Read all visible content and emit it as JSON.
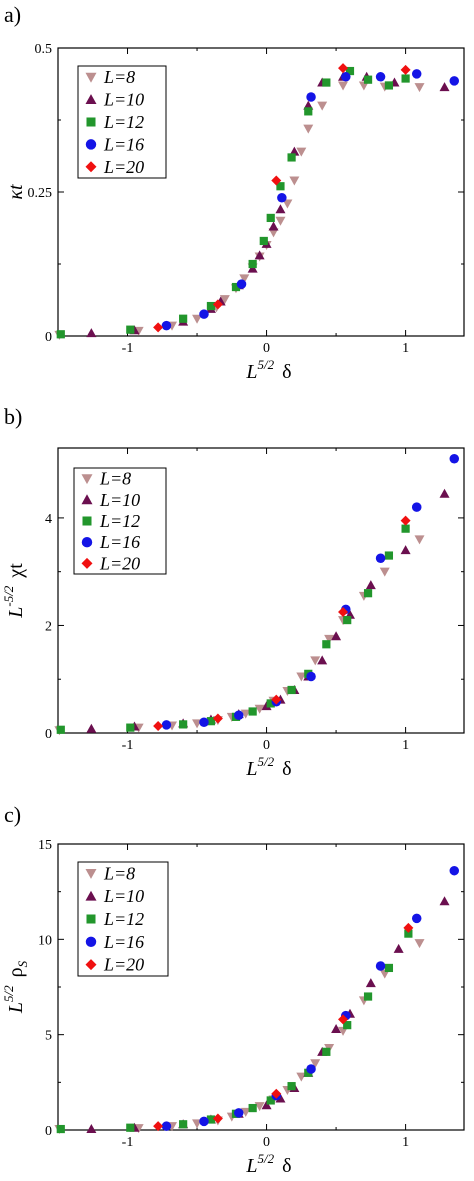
{
  "colors": {
    "L8": "#bc8f8f",
    "L10": "#6b0f4f",
    "L12": "#22962c",
    "L16": "#1414e6",
    "L20": "#f01010"
  },
  "chart_data": [
    {
      "type": "scatter",
      "panel_label": "a)",
      "xlabel": {
        "base": "L",
        "sup": "5/2",
        "tail": "δ"
      },
      "ylabel": {
        "main": "κt"
      },
      "xlim": [
        -1.5,
        1.42
      ],
      "ylim": [
        0,
        0.5
      ],
      "xticks": [
        -1,
        0,
        1
      ],
      "xtick_labels": [
        "-1",
        "0",
        "1"
      ],
      "yticks": [
        0,
        0.25,
        0.5
      ],
      "ytick_labels": [
        "0",
        "0.25",
        "0.5"
      ],
      "grid": false,
      "legend_position": "top-left",
      "series": [
        {
          "name": "L=8",
          "marker": "triangle-down",
          "color_key": "L8",
          "x": [
            -1.49,
            -0.92,
            -0.68,
            -0.5,
            -0.36,
            -0.3,
            -0.22,
            -0.16,
            -0.1,
            -0.05,
            0.0,
            0.05,
            0.1,
            0.15,
            0.2,
            0.25,
            0.3,
            0.4,
            0.55,
            0.7,
            0.85,
            1.1
          ],
          "y": [
            0.002,
            0.009,
            0.018,
            0.03,
            0.05,
            0.064,
            0.083,
            0.1,
            0.119,
            0.138,
            0.158,
            0.18,
            0.2,
            0.23,
            0.27,
            0.32,
            0.36,
            0.4,
            0.435,
            0.435,
            0.433,
            0.432
          ]
        },
        {
          "name": "L=10",
          "marker": "triangle-up",
          "color_key": "L10",
          "x": [
            -1.26,
            -0.95,
            -0.6,
            -0.4,
            -0.33,
            -0.2,
            -0.1,
            -0.05,
            0.0,
            0.05,
            0.1,
            0.2,
            0.3,
            0.4,
            0.55,
            0.72,
            0.92,
            1.28
          ],
          "y": [
            0.005,
            0.01,
            0.025,
            0.047,
            0.06,
            0.088,
            0.117,
            0.14,
            0.16,
            0.19,
            0.22,
            0.32,
            0.4,
            0.44,
            0.45,
            0.45,
            0.44,
            0.432
          ]
        },
        {
          "name": "L=12",
          "marker": "square",
          "color_key": "L12",
          "x": [
            -1.48,
            -0.98,
            -0.6,
            -0.4,
            -0.22,
            -0.1,
            -0.02,
            0.03,
            0.1,
            0.18,
            0.3,
            0.43,
            0.6,
            0.73,
            0.88,
            1.0
          ],
          "y": [
            0.003,
            0.011,
            0.03,
            0.052,
            0.085,
            0.125,
            0.165,
            0.205,
            0.26,
            0.31,
            0.39,
            0.44,
            0.46,
            0.445,
            0.435,
            0.447
          ]
        },
        {
          "name": "L=16",
          "marker": "circle",
          "color_key": "L16",
          "x": [
            -0.72,
            -0.45,
            -0.18,
            0.11,
            0.32,
            0.57,
            0.82,
            1.08,
            1.35
          ],
          "y": [
            0.018,
            0.038,
            0.09,
            0.24,
            0.415,
            0.45,
            0.45,
            0.455,
            0.443
          ]
        },
        {
          "name": "L=20",
          "marker": "diamond",
          "color_key": "L20",
          "x": [
            -0.78,
            -0.35,
            0.07,
            0.55,
            1.0
          ],
          "y": [
            0.015,
            0.055,
            0.27,
            0.465,
            0.462
          ]
        }
      ]
    },
    {
      "type": "scatter",
      "panel_label": "b)",
      "xlabel": {
        "base": "L",
        "sup": "5/2",
        "tail": "δ"
      },
      "ylabel": {
        "base": "L",
        "sup": "-5/2",
        "tail": "χt"
      },
      "xlim": [
        -1.5,
        1.42
      ],
      "ylim": [
        0,
        5.3
      ],
      "xticks": [
        -1,
        0,
        1
      ],
      "xtick_labels": [
        "-1",
        "0",
        "1"
      ],
      "yticks": [
        0,
        2,
        4
      ],
      "ytick_labels": [
        "0",
        "2",
        "4"
      ],
      "grid": false,
      "legend_position": "top-left",
      "series": [
        {
          "name": "L=8",
          "marker": "triangle-down",
          "color_key": "L8",
          "x": [
            -1.49,
            -0.92,
            -0.68,
            -0.5,
            -0.35,
            -0.25,
            -0.15,
            -0.05,
            0.05,
            0.15,
            0.25,
            0.35,
            0.45,
            0.55,
            0.7,
            0.85,
            1.1
          ],
          "y": [
            0.05,
            0.1,
            0.14,
            0.18,
            0.24,
            0.3,
            0.36,
            0.45,
            0.6,
            0.78,
            1.05,
            1.35,
            1.75,
            2.1,
            2.55,
            3.0,
            3.6
          ]
        },
        {
          "name": "L=10",
          "marker": "triangle-up",
          "color_key": "L10",
          "x": [
            -1.26,
            -0.95,
            -0.6,
            -0.4,
            -0.2,
            0.0,
            0.1,
            0.2,
            0.3,
            0.4,
            0.5,
            0.6,
            0.75,
            1.0,
            1.28
          ],
          "y": [
            0.08,
            0.12,
            0.18,
            0.25,
            0.35,
            0.5,
            0.62,
            0.8,
            1.05,
            1.35,
            1.8,
            2.2,
            2.75,
            3.4,
            4.45
          ]
        },
        {
          "name": "L=12",
          "marker": "square",
          "color_key": "L12",
          "x": [
            -1.48,
            -0.98,
            -0.6,
            -0.4,
            -0.22,
            -0.1,
            0.03,
            0.18,
            0.3,
            0.43,
            0.58,
            0.73,
            0.88,
            1.0
          ],
          "y": [
            0.06,
            0.1,
            0.16,
            0.22,
            0.3,
            0.4,
            0.55,
            0.8,
            1.1,
            1.65,
            2.1,
            2.6,
            3.3,
            3.8
          ]
        },
        {
          "name": "L=16",
          "marker": "circle",
          "color_key": "L16",
          "x": [
            -0.72,
            -0.45,
            -0.2,
            0.07,
            0.32,
            0.57,
            0.82,
            1.08,
            1.35
          ],
          "y": [
            0.15,
            0.2,
            0.33,
            0.58,
            1.05,
            2.3,
            3.25,
            4.2,
            5.1
          ]
        },
        {
          "name": "L=20",
          "marker": "diamond",
          "color_key": "L20",
          "x": [
            -0.78,
            -0.35,
            0.07,
            0.55,
            1.0
          ],
          "y": [
            0.13,
            0.27,
            0.62,
            2.25,
            3.95
          ]
        }
      ]
    },
    {
      "type": "scatter",
      "panel_label": "c)",
      "xlabel": {
        "base": "L",
        "sup": "5/2",
        "tail": "δ"
      },
      "ylabel": {
        "base": "L",
        "sup": "5/2",
        "tail": "ρ",
        "sub": "S"
      },
      "xlim": [
        -1.5,
        1.42
      ],
      "ylim": [
        0,
        15
      ],
      "xticks": [
        -1,
        0,
        1
      ],
      "xtick_labels": [
        "-1",
        "0",
        "1"
      ],
      "yticks": [
        0,
        5,
        10,
        15
      ],
      "ytick_labels": [
        "0",
        "5",
        "10",
        "15"
      ],
      "grid": false,
      "legend_position": "top-left",
      "series": [
        {
          "name": "L=8",
          "marker": "triangle-down",
          "color_key": "L8",
          "x": [
            -1.49,
            -0.92,
            -0.68,
            -0.5,
            -0.35,
            -0.25,
            -0.15,
            -0.05,
            0.05,
            0.15,
            0.25,
            0.35,
            0.45,
            0.55,
            0.7,
            0.85,
            1.1
          ],
          "y": [
            0.05,
            0.1,
            0.2,
            0.35,
            0.5,
            0.7,
            0.95,
            1.25,
            1.6,
            2.1,
            2.8,
            3.5,
            4.3,
            5.2,
            6.8,
            8.2,
            9.8
          ]
        },
        {
          "name": "L=10",
          "marker": "triangle-up",
          "color_key": "L10",
          "x": [
            -1.26,
            -0.95,
            -0.6,
            -0.4,
            -0.2,
            0.0,
            0.1,
            0.2,
            0.3,
            0.4,
            0.5,
            0.6,
            0.75,
            0.95,
            1.28
          ],
          "y": [
            0.05,
            0.12,
            0.3,
            0.55,
            0.85,
            1.3,
            1.65,
            2.2,
            3.0,
            4.1,
            5.3,
            6.1,
            7.7,
            9.5,
            12.0
          ]
        },
        {
          "name": "L=12",
          "marker": "square",
          "color_key": "L12",
          "x": [
            -1.48,
            -0.98,
            -0.6,
            -0.4,
            -0.22,
            -0.1,
            0.03,
            0.18,
            0.3,
            0.43,
            0.58,
            0.73,
            0.88,
            1.02
          ],
          "y": [
            0.05,
            0.12,
            0.3,
            0.55,
            0.85,
            1.15,
            1.55,
            2.3,
            3.0,
            4.1,
            5.5,
            7.0,
            8.5,
            10.3
          ]
        },
        {
          "name": "L=16",
          "marker": "circle",
          "color_key": "L16",
          "x": [
            -0.72,
            -0.45,
            -0.2,
            0.07,
            0.32,
            0.57,
            0.82,
            1.08,
            1.35
          ],
          "y": [
            0.2,
            0.45,
            0.9,
            1.8,
            3.2,
            6.0,
            8.6,
            11.1,
            13.6
          ]
        },
        {
          "name": "L=20",
          "marker": "diamond",
          "color_key": "L20",
          "x": [
            -0.78,
            -0.35,
            0.07,
            0.55,
            1.02
          ],
          "y": [
            0.2,
            0.6,
            1.9,
            5.8,
            10.6
          ]
        }
      ]
    }
  ]
}
